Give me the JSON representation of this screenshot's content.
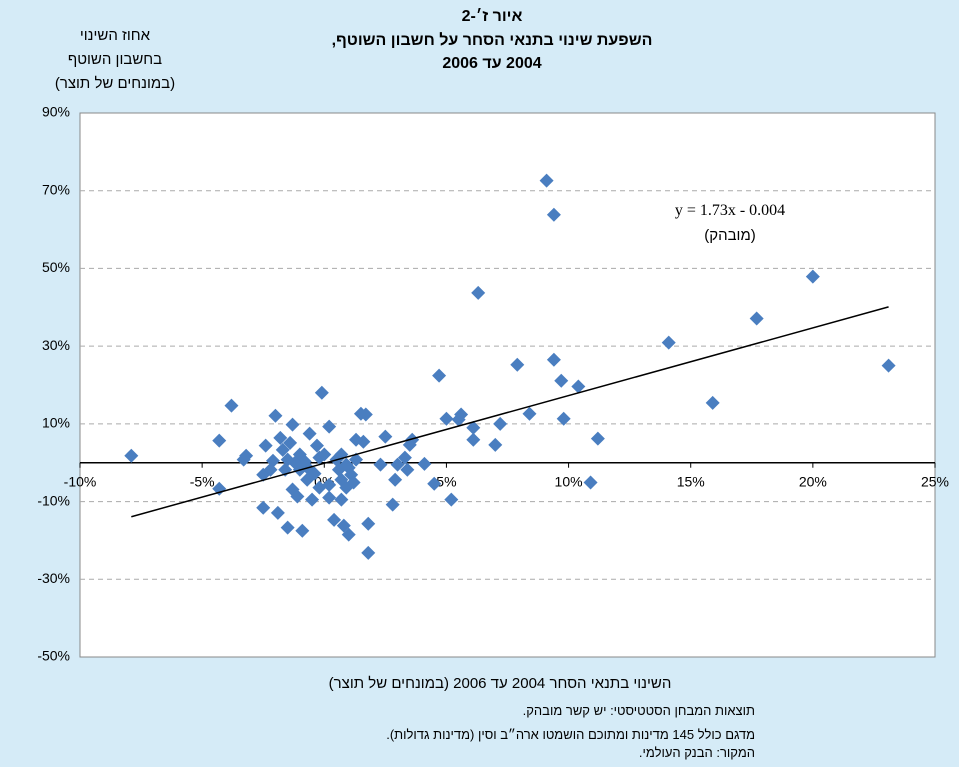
{
  "chart_data": {
    "type": "scatter",
    "title": [
      "איור ז׳-2",
      "השפעת שינוי בתנאי הסחר על חשבון השוטף,",
      "2004 עד 2006"
    ],
    "y_label": [
      "אחוז השינוי",
      "בחשבון השוטף",
      "(במונחים של תוצר)"
    ],
    "x_label": "השינוי בתנאי הסחר 2004 עד 2006 (במונחים של תוצר)",
    "notes": [
      "תוצאות המבחן הסטטיסטי: יש קשר מובהק.",
      "מדגם כולל 145 מדינות ומתוכם הושמטו ארה״ב וסין (מדינות גדולות).",
      "המקור: הבנק העולמי."
    ],
    "annotations": [
      "y = 1.73x - 0.004",
      "(מובהק)"
    ],
    "xlim": [
      -10,
      25
    ],
    "xticks": [
      {
        "value": -10,
        "label": "-10%"
      },
      {
        "value": -5,
        "label": "-5%"
      },
      {
        "value": 0,
        "label": "0%"
      },
      {
        "value": 5,
        "label": "5%"
      },
      {
        "value": 10,
        "label": "10%"
      },
      {
        "value": 15,
        "label": "15%"
      },
      {
        "value": 20,
        "label": "20%"
      },
      {
        "value": 25,
        "label": "25%"
      }
    ],
    "ylim": [
      -50,
      90
    ],
    "yticks": [
      {
        "value": 90,
        "label": "90%"
      },
      {
        "value": 70,
        "label": "70%"
      },
      {
        "value": 50,
        "label": "50%"
      },
      {
        "value": 30,
        "label": "30%"
      },
      {
        "value": 10,
        "label": "10%"
      },
      {
        "value": -10,
        "label": "-10%"
      },
      {
        "value": -30,
        "label": "-30%"
      },
      {
        "value": -50,
        "label": "-50%"
      }
    ],
    "grid": true,
    "color": "#4a7ec0",
    "x": [
      -7.9,
      -4.3,
      -3.8,
      -4.3,
      -3.3,
      -3.2,
      -2.4,
      -2.0,
      -2.5,
      -2.5,
      -1.9,
      -1.5,
      -0.9,
      -1.3,
      -1.7,
      -2.1,
      -1.6,
      -1.3,
      -1.1,
      -0.7,
      -0.6,
      -0.3,
      -0.1,
      0.2,
      -0.5,
      -0.2,
      0.2,
      0.4,
      0.8,
      1.0,
      0.7,
      0.9,
      1.1,
      1.2,
      1.5,
      1.7,
      1.6,
      1.8,
      1.8,
      2.3,
      2.5,
      2.8,
      2.9,
      3.0,
      3.3,
      3.5,
      3.6,
      3.4,
      4.1,
      4.5,
      4.7,
      5.0,
      5.2,
      5.5,
      5.6,
      6.1,
      6.1,
      6.3,
      7.0,
      7.2,
      7.9,
      8.4,
      9.1,
      9.4,
      9.4,
      9.7,
      9.8,
      10.4,
      10.9,
      11.2,
      14.1,
      15.9,
      17.7,
      20.0,
      23.1,
      -1.0,
      -0.8,
      -1.2,
      -0.6,
      -0.2,
      0.0,
      0.5,
      0.6,
      0.7,
      1.0,
      1.3,
      0.2,
      -1.4,
      -1.8,
      -1.5,
      -1.0,
      -0.4,
      0.7,
      0.9,
      1.3,
      -2.2
    ],
    "values": [
      1.8,
      5.7,
      14.7,
      -6.7,
      0.8,
      1.8,
      4.4,
      12.1,
      -3.1,
      -11.6,
      -12.9,
      -16.7,
      -17.5,
      9.8,
      3.3,
      0.5,
      -1.8,
      -6.9,
      -8.7,
      -4.4,
      7.5,
      4.4,
      18.0,
      9.3,
      -9.5,
      -6.4,
      -9.0,
      -14.7,
      -16.2,
      -18.5,
      -9.5,
      -0.5,
      -3.1,
      -5.1,
      12.6,
      12.4,
      5.4,
      -15.7,
      -23.2,
      -0.5,
      6.7,
      -10.8,
      -4.4,
      -0.5,
      1.3,
      4.6,
      5.9,
      -1.8,
      -0.3,
      -5.4,
      22.4,
      11.3,
      -9.5,
      11.1,
      12.4,
      9.0,
      5.9,
      43.7,
      4.6,
      10.0,
      25.2,
      12.6,
      72.6,
      63.8,
      26.5,
      21.1,
      11.3,
      19.6,
      -5.1,
      6.2,
      30.9,
      15.4,
      37.1,
      47.9,
      25.0,
      2.1,
      0.3,
      0.0,
      -1.8,
      1.3,
      2.1,
      0.8,
      -1.8,
      2.1,
      -1.3,
      0.8,
      -5.7,
      5.1,
      6.4,
      0.8,
      -1.8,
      -2.8,
      -4.4,
      -6.4,
      5.9,
      -1.8
    ],
    "trendline": {
      "x": [
        -7.9,
        23.1
      ],
      "values": [
        -13.9,
        40.1
      ],
      "color": "#000000"
    }
  }
}
